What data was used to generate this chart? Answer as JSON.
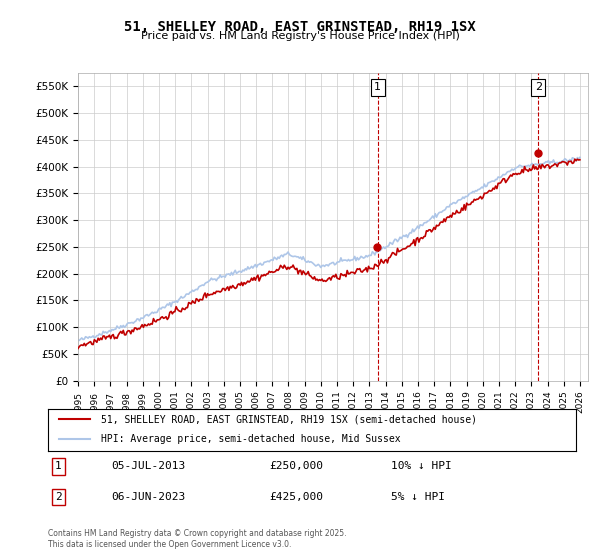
{
  "title": "51, SHELLEY ROAD, EAST GRINSTEAD, RH19 1SX",
  "subtitle": "Price paid vs. HM Land Registry's House Price Index (HPI)",
  "ylabel_ticks": [
    "£0",
    "£50K",
    "£100K",
    "£150K",
    "£200K",
    "£250K",
    "£300K",
    "£350K",
    "£400K",
    "£450K",
    "£500K",
    "£550K"
  ],
  "ytick_values": [
    0,
    50000,
    100000,
    150000,
    200000,
    250000,
    300000,
    350000,
    400000,
    450000,
    500000,
    550000
  ],
  "ylim": [
    0,
    575000
  ],
  "xlim_start": 1995.0,
  "xlim_end": 2026.5,
  "hpi_color": "#aec6e8",
  "price_color": "#c00000",
  "vline_color": "#c00000",
  "purchase1_year": 2013.51,
  "purchase1_price": 250000,
  "purchase1_label": "1",
  "purchase2_year": 2023.43,
  "purchase2_price": 425000,
  "purchase2_label": "2",
  "legend_line1": "51, SHELLEY ROAD, EAST GRINSTEAD, RH19 1SX (semi-detached house)",
  "legend_line2": "HPI: Average price, semi-detached house, Mid Sussex",
  "table_row1": [
    "1",
    "05-JUL-2013",
    "£250,000",
    "10% ↓ HPI"
  ],
  "table_row2": [
    "2",
    "06-JUN-2023",
    "£425,000",
    "5% ↓ HPI"
  ],
  "footer": "Contains HM Land Registry data © Crown copyright and database right 2025.\nThis data is licensed under the Open Government Licence v3.0.",
  "background_color": "#ffffff",
  "plot_bg_color": "#ffffff",
  "grid_color": "#cccccc"
}
